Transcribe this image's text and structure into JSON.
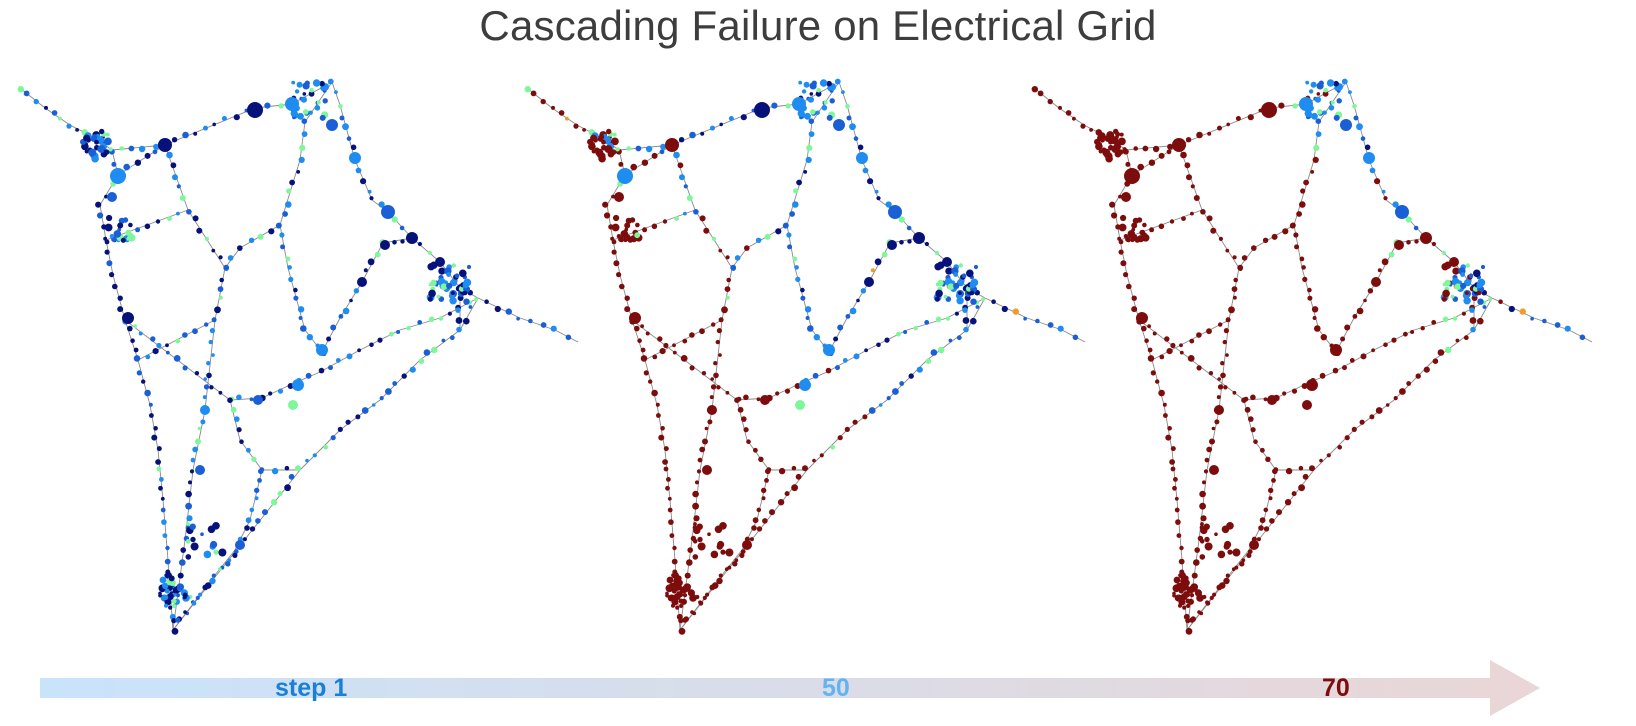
{
  "title": "Cascading Failure on Electrical Grid",
  "timeline": {
    "labels": [
      {
        "text": "step 1",
        "color": "#1a7fd8"
      },
      {
        "text": "50",
        "color": "#62b3f2"
      },
      {
        "text": "70",
        "color": "#7a0d0d"
      }
    ],
    "gradient_start": "#c9e3fb",
    "gradient_end": "#ead6d6"
  },
  "node_colors": {
    "navy": "#07117a",
    "blue": "#1b5fd6",
    "azure": "#1e8cf0",
    "mint": "#7ef79a",
    "orange": "#f39a2b",
    "failed": "#7d0c0c"
  },
  "panels": [
    {
      "step": "step 1",
      "failed_fraction": 0.0
    },
    {
      "step": "50",
      "failed_fraction": 0.48
    },
    {
      "step": "70",
      "failed_fraction": 0.66
    }
  ]
}
